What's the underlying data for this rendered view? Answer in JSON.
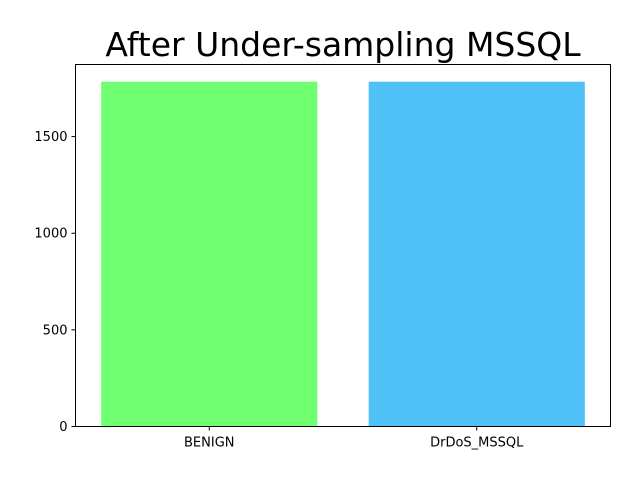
{
  "chart_data": {
    "type": "bar",
    "title": "After Under-sampling MSSQL",
    "xlabel": "",
    "ylabel": "",
    "categories": [
      "BENIGN",
      "DrDoS_MSSQL"
    ],
    "values": [
      1784,
      1784
    ],
    "colors": [
      "#70ff70",
      "#4fc1f7"
    ],
    "ylim": [
      0,
      1873
    ],
    "yticks": [
      0,
      500,
      1000,
      1500
    ],
    "grid": false,
    "legend": "none"
  }
}
